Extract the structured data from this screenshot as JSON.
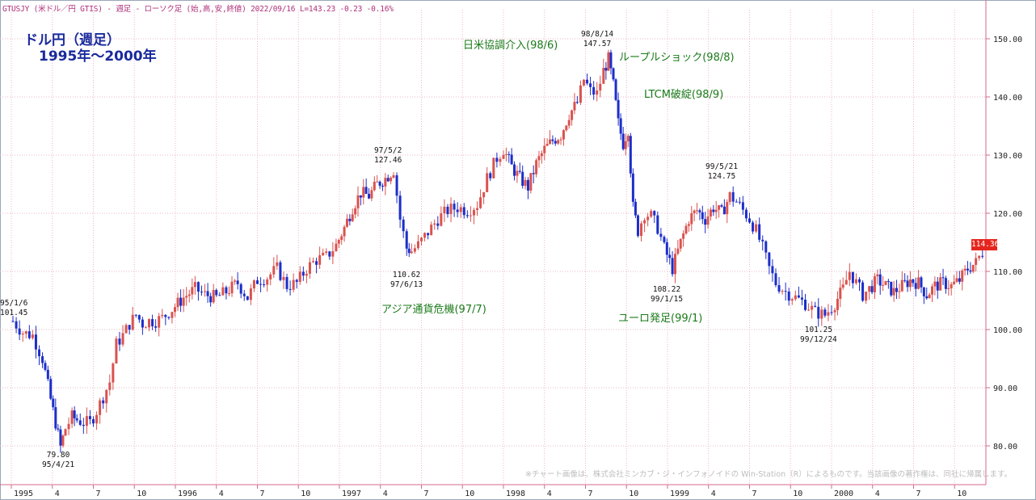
{
  "header": {
    "text": "GTUSJY (米ドル／円 GTIS) - 週足 - ローソク足 (始,高,安,終値)  2022/09/16 L=143.23 -0.23  -0.16%"
  },
  "title": {
    "line1": "ドル円（週足）",
    "line2": "1995年～2000年"
  },
  "annotations": [
    {
      "id": "nichibei",
      "text": "日米協調介入(98/6)"
    },
    {
      "id": "ruble",
      "text": "ループルショック(98/8)"
    },
    {
      "id": "ltcm",
      "text": "LTCM破綻(98/9)"
    },
    {
      "id": "asia",
      "text": "アジア通貨危機(97/7)"
    },
    {
      "id": "euro",
      "text": "ユーロ発足(99/1)"
    }
  ],
  "price_labels": [
    {
      "id": "start",
      "date": "95/1/6",
      "value": "101.45"
    },
    {
      "id": "low1",
      "date": "95/4/21",
      "value": "79.80"
    },
    {
      "id": "high1",
      "date": "97/5/2",
      "value": "127.46"
    },
    {
      "id": "low2",
      "date": "97/6/13",
      "value": "110.62"
    },
    {
      "id": "high2",
      "date": "98/8/14",
      "value": "147.57"
    },
    {
      "id": "low3",
      "date": "99/1/15",
      "value": "108.22"
    },
    {
      "id": "high3",
      "date": "99/5/21",
      "value": "124.75"
    },
    {
      "id": "low4",
      "date": "99/12/24",
      "value": "101.25"
    }
  ],
  "current_price": "114.36",
  "copyright": "※チャート画像は、株式会社ミンカブ・ジ・インフォノイドの Win-Station（R）によるものです。当該画像の著作権は、同社に帰属します。",
  "colors": {
    "up": "#d9534f",
    "down": "#1c2ec9",
    "grid": "#e8b8c8",
    "axis": "#d46a8a",
    "text": "#222222",
    "annotation": "#1a7a1a",
    "title": "#1a2a9c",
    "price_box": "#e5261f"
  },
  "chart_data": {
    "type": "candlestick",
    "yticks": [
      "150.00",
      "140.00",
      "130.00",
      "120.00",
      "110.00",
      "100.00",
      "90.00",
      "80.00"
    ],
    "ylim": [
      71,
      157
    ],
    "x_tick_labels": [
      "1995",
      "4",
      "7",
      "10",
      "1996",
      "4",
      "7",
      "10",
      "1997",
      "4",
      "7",
      "10",
      "1998",
      "4",
      "7",
      "10",
      "1999",
      "4",
      "7",
      "10",
      "2000",
      "4",
      "7",
      "10"
    ],
    "price_path": [
      [
        1995.01,
        101.45
      ],
      [
        1995.07,
        99.5
      ],
      [
        1995.13,
        99.0
      ],
      [
        1995.19,
        95.0
      ],
      [
        1995.24,
        88.0
      ],
      [
        1995.27,
        84.0
      ],
      [
        1995.3,
        79.8
      ],
      [
        1995.33,
        83.0
      ],
      [
        1995.37,
        85.0
      ],
      [
        1995.4,
        84.5
      ],
      [
        1995.44,
        84.0
      ],
      [
        1995.48,
        84.0
      ],
      [
        1995.52,
        86.0
      ],
      [
        1995.56,
        88.5
      ],
      [
        1995.6,
        91.0
      ],
      [
        1995.64,
        97.5
      ],
      [
        1995.68,
        99.0
      ],
      [
        1995.72,
        101.0
      ],
      [
        1995.76,
        102.5
      ],
      [
        1995.8,
        101.0
      ],
      [
        1995.84,
        101.5
      ],
      [
        1995.88,
        101.5
      ],
      [
        1995.92,
        102.0
      ],
      [
        1995.98,
        103.5
      ],
      [
        1996.05,
        105.5
      ],
      [
        1996.12,
        107.0
      ],
      [
        1996.18,
        106.0
      ],
      [
        1996.25,
        105.5
      ],
      [
        1996.31,
        106.5
      ],
      [
        1996.38,
        108.0
      ],
      [
        1996.44,
        105.5
      ],
      [
        1996.5,
        108.5
      ],
      [
        1996.56,
        109.0
      ],
      [
        1996.62,
        110.5
      ],
      [
        1996.68,
        107.5
      ],
      [
        1996.74,
        108.0
      ],
      [
        1996.8,
        110.5
      ],
      [
        1996.86,
        112.0
      ],
      [
        1996.92,
        112.5
      ],
      [
        1996.98,
        114.5
      ],
      [
        1997.03,
        117.5
      ],
      [
        1997.08,
        121.0
      ],
      [
        1997.13,
        123.5
      ],
      [
        1997.18,
        123.0
      ],
      [
        1997.23,
        125.0
      ],
      [
        1997.28,
        126.0
      ],
      [
        1997.33,
        127.46
      ],
      [
        1997.37,
        119.0
      ],
      [
        1997.41,
        114.0
      ],
      [
        1997.44,
        113.5
      ],
      [
        1997.48,
        114.5
      ],
      [
        1997.52,
        116.0
      ],
      [
        1997.56,
        117.5
      ],
      [
        1997.6,
        119.0
      ],
      [
        1997.66,
        120.5
      ],
      [
        1997.72,
        121.0
      ],
      [
        1997.78,
        120.5
      ],
      [
        1997.84,
        121.5
      ],
      [
        1997.9,
        126.0
      ],
      [
        1997.96,
        129.5
      ],
      [
        1998.0,
        131.0
      ],
      [
        1998.05,
        128.0
      ],
      [
        1998.1,
        126.0
      ],
      [
        1998.15,
        124.5
      ],
      [
        1998.2,
        128.5
      ],
      [
        1998.25,
        131.0
      ],
      [
        1998.3,
        132.5
      ],
      [
        1998.35,
        133.5
      ],
      [
        1998.4,
        137.0
      ],
      [
        1998.45,
        139.0
      ],
      [
        1998.49,
        143.0
      ],
      [
        1998.53,
        141.0
      ],
      [
        1998.57,
        140.5
      ],
      [
        1998.61,
        144.5
      ],
      [
        1998.64,
        146.5
      ],
      [
        1998.67,
        142.0
      ],
      [
        1998.7,
        135.5
      ],
      [
        1998.73,
        132.0
      ],
      [
        1998.76,
        134.5
      ],
      [
        1998.79,
        121.0
      ],
      [
        1998.82,
        117.0
      ],
      [
        1998.86,
        120.0
      ],
      [
        1998.9,
        119.5
      ],
      [
        1998.94,
        117.5
      ],
      [
        1998.98,
        114.0
      ],
      [
        1999.03,
        110.5
      ],
      [
        1999.08,
        115.0
      ],
      [
        1999.13,
        119.0
      ],
      [
        1999.18,
        120.5
      ],
      [
        1999.23,
        119.0
      ],
      [
        1999.28,
        121.0
      ],
      [
        1999.33,
        120.0
      ],
      [
        1999.38,
        123.0
      ],
      [
        1999.42,
        122.0
      ],
      [
        1999.46,
        120.5
      ],
      [
        1999.5,
        119.0
      ],
      [
        1999.54,
        117.0
      ],
      [
        1999.58,
        114.0
      ],
      [
        1999.62,
        110.5
      ],
      [
        1999.66,
        108.0
      ],
      [
        1999.72,
        106.5
      ],
      [
        1999.78,
        105.5
      ],
      [
        1999.84,
        104.5
      ],
      [
        1999.9,
        103.0
      ],
      [
        1999.96,
        102.5
      ],
      [
        2000.02,
        104.5
      ],
      [
        2000.07,
        107.0
      ],
      [
        2000.11,
        110.0
      ],
      [
        2000.15,
        108.0
      ],
      [
        2000.19,
        106.0
      ],
      [
        2000.23,
        107.0
      ],
      [
        2000.28,
        108.5
      ],
      [
        2000.33,
        107.5
      ],
      [
        2000.38,
        106.5
      ],
      [
        2000.43,
        107.5
      ],
      [
        2000.48,
        108.5
      ],
      [
        2000.53,
        108.0
      ],
      [
        2000.58,
        106.0
      ],
      [
        2000.63,
        107.5
      ],
      [
        2000.68,
        108.0
      ],
      [
        2000.73,
        107.5
      ],
      [
        2000.78,
        108.5
      ],
      [
        2000.83,
        110.5
      ],
      [
        2000.88,
        111.5
      ],
      [
        2000.94,
        114.36
      ]
    ]
  }
}
